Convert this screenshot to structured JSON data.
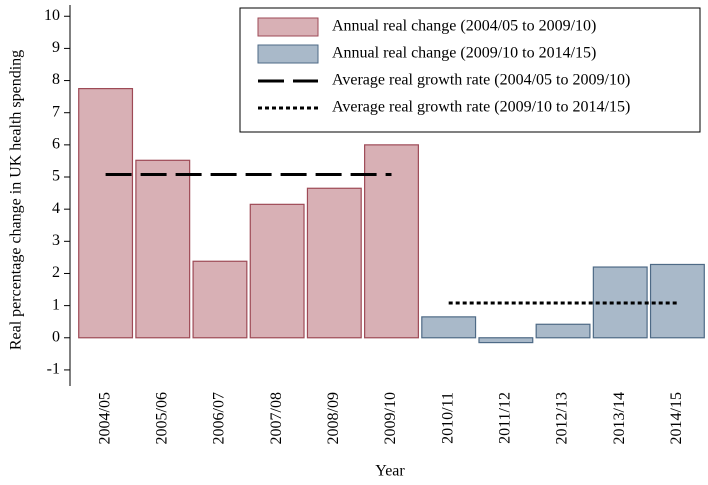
{
  "chart_data": {
    "type": "bar",
    "x_label": "Year",
    "y_label": "Real percentage change in UK health spending",
    "categories": [
      "2004/05",
      "2005/06",
      "2006/07",
      "2007/08",
      "2008/09",
      "2009/10",
      "2010/11",
      "2011/12",
      "2012/13",
      "2013/14",
      "2014/15"
    ],
    "series": [
      {
        "name": "Annual real change (2004/05 to 2009/10)",
        "type": "bar",
        "color": "#d8b0b5",
        "edge": "#9e4a56",
        "values": [
          7.75,
          5.52,
          2.38,
          4.15,
          4.65,
          6.0,
          null,
          null,
          null,
          null,
          null
        ]
      },
      {
        "name": "Annual real change (2009/10 to 2014/15)",
        "type": "bar",
        "color": "#a9b9c9",
        "edge": "#4e6a86",
        "values": [
          null,
          null,
          null,
          null,
          null,
          null,
          0.65,
          -0.15,
          0.42,
          2.2,
          2.28
        ]
      },
      {
        "name": "Average real growth rate (2004/05 to 2009/10)",
        "type": "line",
        "color": "#000000",
        "style": "dashed",
        "values": [
          5.08,
          5.08,
          5.08,
          5.08,
          5.08,
          5.08,
          null,
          null,
          null,
          null,
          null
        ]
      },
      {
        "name": "Average real growth rate (2009/10 to 2014/15)",
        "type": "line",
        "color": "#000000",
        "style": "dotted",
        "values": [
          null,
          null,
          null,
          null,
          null,
          null,
          1.08,
          1.08,
          1.08,
          1.08,
          1.08
        ]
      }
    ],
    "ylim": [
      -1.5,
      10.35
    ],
    "yticks": [
      -1,
      0,
      1,
      2,
      3,
      4,
      5,
      6,
      7,
      8,
      9,
      10
    ],
    "legend": "top-right"
  }
}
